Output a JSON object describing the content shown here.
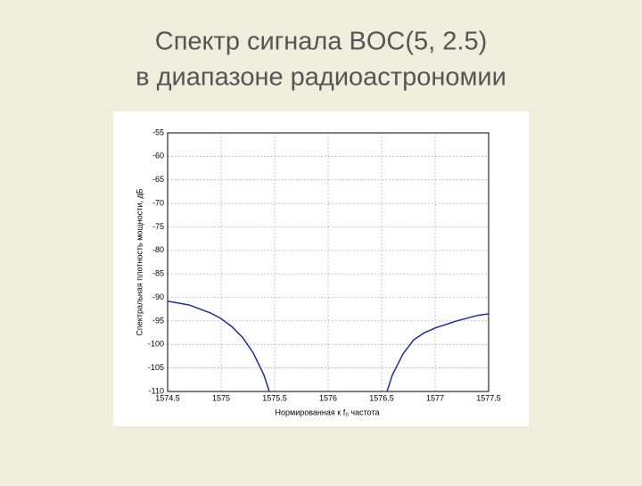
{
  "slide_title": [
    "Спектр сигнала BOC(5, 2.5)",
    "в диапазоне радиоастрономии"
  ],
  "chart_data": {
    "type": "line",
    "x": [
      1574.5,
      1574.7,
      1574.9,
      1575,
      1575.1,
      1575.2,
      1575.3,
      1575.4,
      1575.45,
      1576,
      1576.55,
      1576.6,
      1576.7,
      1576.8,
      1576.9,
      1577,
      1577.2,
      1577.4,
      1577.5
    ],
    "values": [
      -90.8,
      -91.6,
      -93.3,
      -94.5,
      -96.2,
      -98.5,
      -101.8,
      -106.5,
      -110,
      null,
      -110,
      -106.5,
      -102,
      -99,
      -97.5,
      -96.5,
      -95,
      -93.8,
      -93.5
    ],
    "color": "#1f2d96",
    "xlabel": "Нормированная к f₀ частота",
    "ylabel": "Спектральная плотность мощности, дБ",
    "xlim": [
      1574.5,
      1577.5
    ],
    "xticks": [
      1574.5,
      1575,
      1575.5,
      1576,
      1576.5,
      1577,
      1577.5
    ],
    "ylim": [
      -110,
      -55
    ],
    "yticks": [
      -55,
      -60,
      -65,
      -70,
      -75,
      -80,
      -85,
      -90,
      -95,
      -100,
      -105,
      -110
    ],
    "grid": true
  }
}
